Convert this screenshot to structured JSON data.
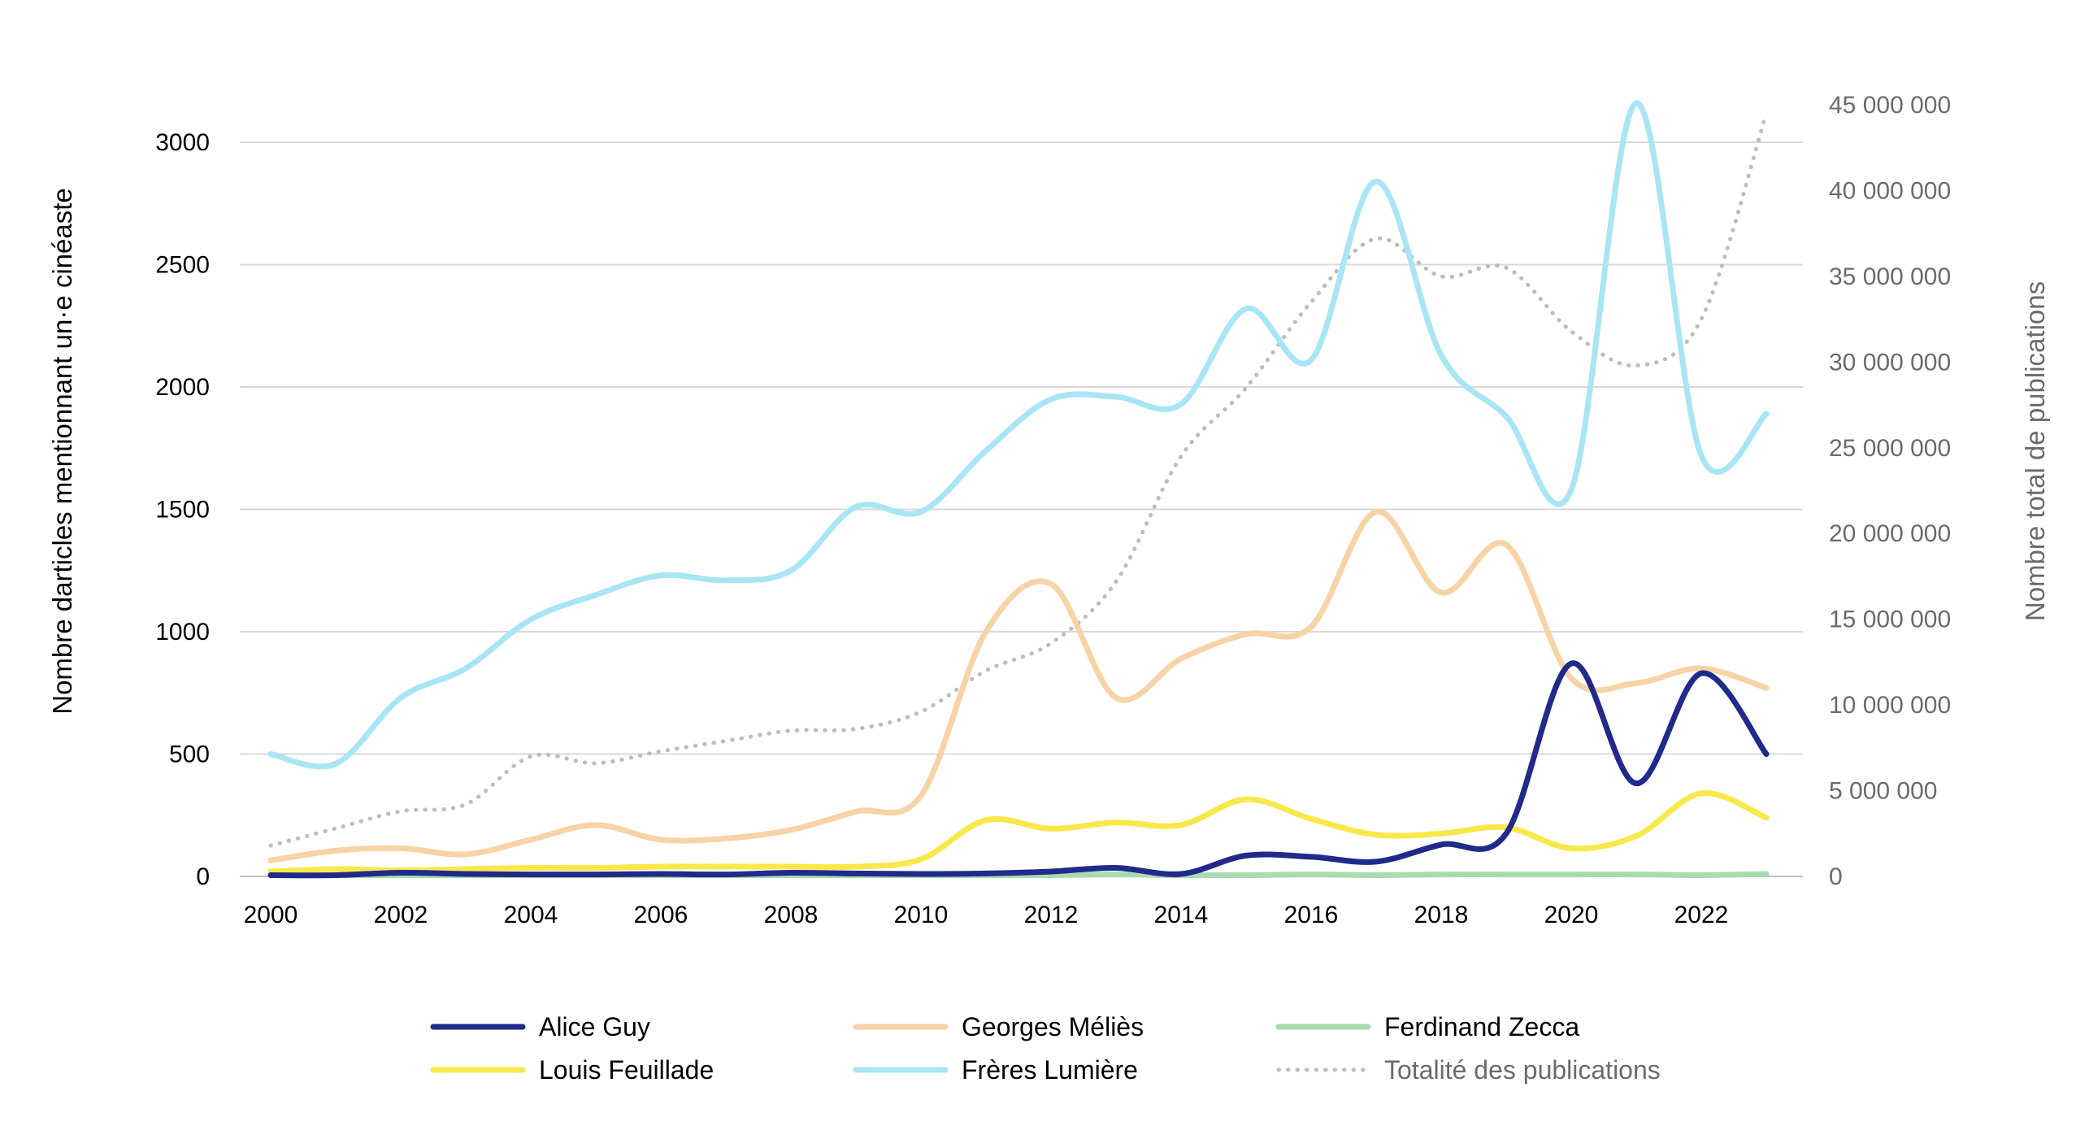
{
  "chart_data": {
    "type": "line",
    "title": "",
    "x": [
      2000,
      2001,
      2002,
      2003,
      2004,
      2005,
      2006,
      2007,
      2008,
      2009,
      2010,
      2011,
      2012,
      2013,
      2014,
      2015,
      2016,
      2017,
      2018,
      2019,
      2020,
      2021,
      2022,
      2023
    ],
    "x_ticks": [
      "2000",
      "2002",
      "2004",
      "2006",
      "2008",
      "2010",
      "2012",
      "2014",
      "2016",
      "2018",
      "2020",
      "2022"
    ],
    "ylabel_left": "Nombre darticles mentionnant un·e cinéaste",
    "ylabel_right": "Nombre total de publications",
    "ylim_left": [
      0,
      3000
    ],
    "y_ticks_left": [
      "0",
      "500",
      "1000",
      "1500",
      "2000",
      "2500",
      "3000"
    ],
    "ylim_right": [
      0,
      45000000
    ],
    "y_ticks_right": [
      "0",
      "5 000 000",
      "10 000 000",
      "15 000 000",
      "20 000 000",
      "25 000 000",
      "30 000 000",
      "35 000 000",
      "40 000 000",
      "45 000 000"
    ],
    "grid": true,
    "legend_position": "bottom",
    "series": [
      {
        "name": "Alice Guy",
        "axis": "left",
        "color": "#1f2a8a",
        "style": "solid",
        "values": [
          5,
          5,
          15,
          10,
          8,
          8,
          10,
          8,
          15,
          12,
          10,
          12,
          20,
          35,
          10,
          85,
          80,
          60,
          130,
          175,
          870,
          380,
          830,
          500
        ]
      },
      {
        "name": "Georges Méliès",
        "axis": "left",
        "color": "#f7d3a6",
        "style": "solid",
        "values": [
          65,
          105,
          115,
          90,
          150,
          210,
          150,
          155,
          190,
          265,
          330,
          1000,
          1195,
          730,
          890,
          990,
          1020,
          1490,
          1160,
          1355,
          810,
          790,
          850,
          770
        ]
      },
      {
        "name": "Ferdinand Zecca",
        "axis": "left",
        "color": "#a8dbb0",
        "style": "solid",
        "values": [
          5,
          5,
          5,
          5,
          5,
          5,
          5,
          5,
          5,
          5,
          5,
          5,
          5,
          8,
          5,
          5,
          8,
          5,
          8,
          8,
          8,
          8,
          5,
          10
        ]
      },
      {
        "name": "Louis Feuillade",
        "axis": "left",
        "color": "#f8e84a",
        "style": "solid",
        "values": [
          20,
          30,
          25,
          30,
          35,
          35,
          40,
          40,
          40,
          40,
          70,
          230,
          195,
          220,
          210,
          315,
          235,
          170,
          175,
          200,
          115,
          165,
          340,
          240
        ]
      },
      {
        "name": "Frères Lumière",
        "axis": "left",
        "color": "#a8e6f6",
        "style": "solid",
        "values": [
          500,
          460,
          730,
          850,
          1050,
          1150,
          1230,
          1210,
          1250,
          1510,
          1490,
          1740,
          1950,
          1960,
          1930,
          2320,
          2110,
          2840,
          2130,
          1880,
          1580,
          3160,
          1720,
          1890
        ]
      },
      {
        "name": "Totalité des publications",
        "axis": "right",
        "color": "#bdbdbd",
        "style": "dotted",
        "values": [
          1800000,
          2800000,
          3800000,
          4200000,
          7000000,
          6600000,
          7300000,
          7900000,
          8500000,
          8600000,
          9600000,
          12000000,
          13600000,
          17200000,
          24500000,
          28500000,
          33500000,
          37200000,
          35000000,
          35500000,
          31800000,
          29800000,
          32500000,
          44500000
        ]
      }
    ]
  }
}
